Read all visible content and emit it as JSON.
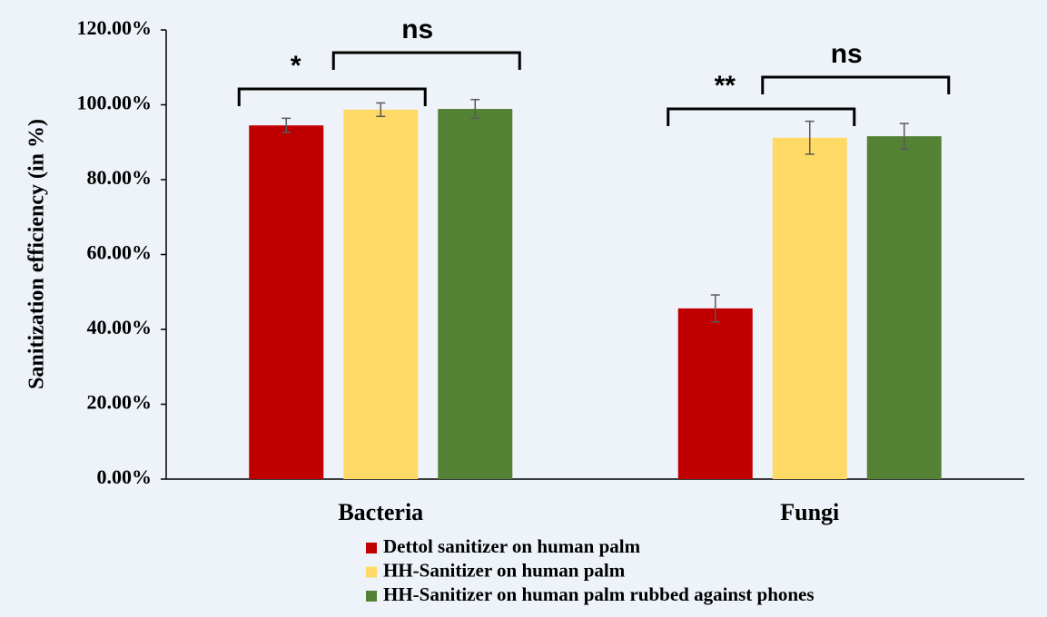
{
  "chart_data": {
    "type": "bar",
    "y_label": "Sanitization efficiency (in %)",
    "categories": [
      "Bacteria",
      "Fungi"
    ],
    "series": [
      {
        "name": "Dettol sanitizer on human palm",
        "color": "#c00000",
        "values": [
          94.5,
          45.6
        ],
        "errors": [
          1.9,
          3.6
        ]
      },
      {
        "name": "HH-Sanitizer on human palm",
        "color": "#ffd966",
        "values": [
          98.7,
          91.2
        ],
        "errors": [
          1.8,
          4.4
        ]
      },
      {
        "name": "HH-Sanitizer on human palm rubbed against phones",
        "color": "#548235",
        "values": [
          98.9,
          91.6
        ],
        "errors": [
          2.5,
          3.4
        ]
      }
    ],
    "ylim": [
      0,
      120
    ],
    "yticks": [
      {
        "value": 0,
        "label": "0.00%"
      },
      {
        "value": 20,
        "label": "20.00%"
      },
      {
        "value": 40,
        "label": "40.00%"
      },
      {
        "value": 60,
        "label": "60.00%"
      },
      {
        "value": 80,
        "label": "80.00%"
      },
      {
        "value": 100,
        "label": "100.00%"
      },
      {
        "value": 120,
        "label": "120.00%"
      }
    ],
    "annotations": [
      "*",
      "ns",
      "**",
      "ns"
    ],
    "grid": false
  }
}
